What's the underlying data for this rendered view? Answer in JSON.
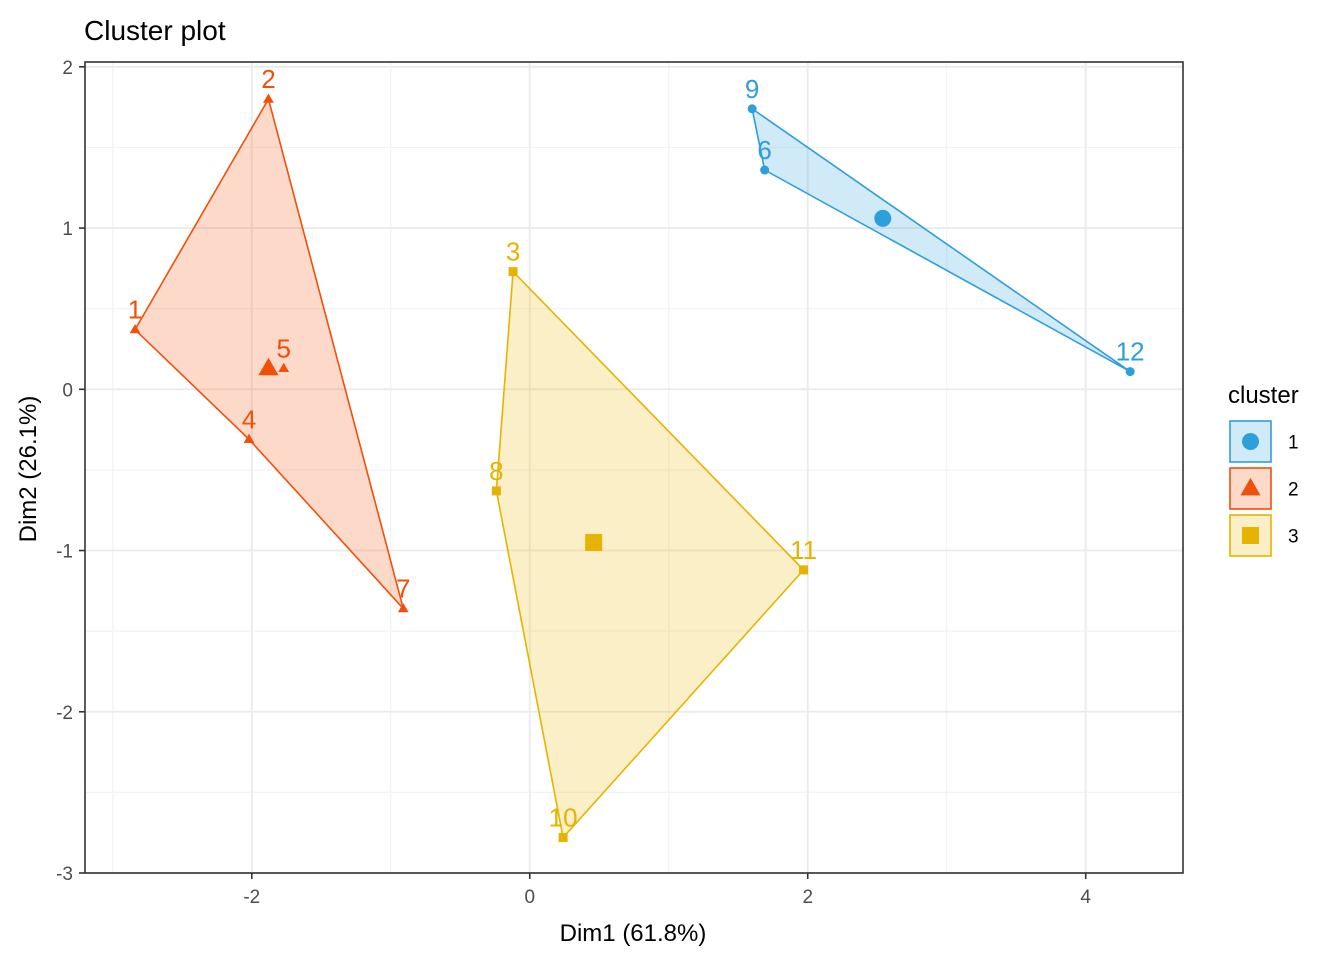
{
  "chart_data": {
    "type": "scatter",
    "title": "Cluster plot",
    "xlabel": "Dim1 (61.8%)",
    "ylabel": "Dim2 (26.1%)",
    "xlim": [
      -3.2,
      4.7
    ],
    "ylim": [
      -3.0,
      2.03
    ],
    "xticks": [
      -2,
      0,
      2,
      4
    ],
    "yticks": [
      -3,
      -2,
      -1,
      0,
      1,
      2
    ],
    "grid": true,
    "legend": {
      "title": "cluster",
      "placement": "right",
      "entries": [
        {
          "label": "1",
          "color": "#2D9FDA",
          "shape": "circle"
        },
        {
          "label": "2",
          "color": "#F0500A",
          "shape": "triangle"
        },
        {
          "label": "3",
          "color": "#E6B400",
          "shape": "square"
        }
      ]
    },
    "series": [
      {
        "cluster": "1",
        "color": "#2D9FDA",
        "shape": "circle",
        "points": [
          {
            "label": "9",
            "x": 1.6,
            "y": 1.74
          },
          {
            "label": "6",
            "x": 1.69,
            "y": 1.36
          },
          {
            "label": "12",
            "x": 4.32,
            "y": 0.11
          }
        ],
        "hull": [
          "9",
          "6",
          "12"
        ],
        "centroid": {
          "x": 2.54,
          "y": 1.06
        }
      },
      {
        "cluster": "2",
        "color": "#F0500A",
        "shape": "triangle",
        "points": [
          {
            "label": "2",
            "x": -1.88,
            "y": 1.8
          },
          {
            "label": "1",
            "x": -2.84,
            "y": 0.37
          },
          {
            "label": "5",
            "x": -1.77,
            "y": 0.13
          },
          {
            "label": "4",
            "x": -2.02,
            "y": -0.31
          },
          {
            "label": "7",
            "x": -0.91,
            "y": -1.36
          }
        ],
        "hull": [
          "2",
          "1",
          "4",
          "7"
        ],
        "centroid": {
          "x": -1.88,
          "y": 0.13
        }
      },
      {
        "cluster": "3",
        "color": "#E6B400",
        "shape": "square",
        "points": [
          {
            "label": "3",
            "x": -0.12,
            "y": 0.73
          },
          {
            "label": "8",
            "x": -0.24,
            "y": -0.63
          },
          {
            "label": "11",
            "x": 1.97,
            "y": -1.12
          },
          {
            "label": "10",
            "x": 0.24,
            "y": -2.78
          }
        ],
        "hull": [
          "3",
          "8",
          "10",
          "11"
        ],
        "centroid": {
          "x": 0.46,
          "y": -0.95
        }
      }
    ]
  }
}
